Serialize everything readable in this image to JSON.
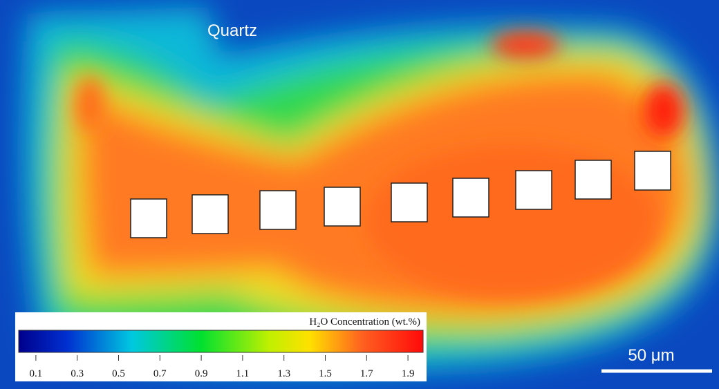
{
  "map_label": "Quartz",
  "colorbar": {
    "title": "H₂O Concentration (wt.%)",
    "lim": [
      0,
      2
    ],
    "ticks": [
      0.1,
      0.3,
      0.5,
      0.7,
      0.9,
      1.1,
      1.3,
      1.5,
      1.7,
      1.9
    ]
  },
  "scale_bar": {
    "label": "50 μm"
  }
}
